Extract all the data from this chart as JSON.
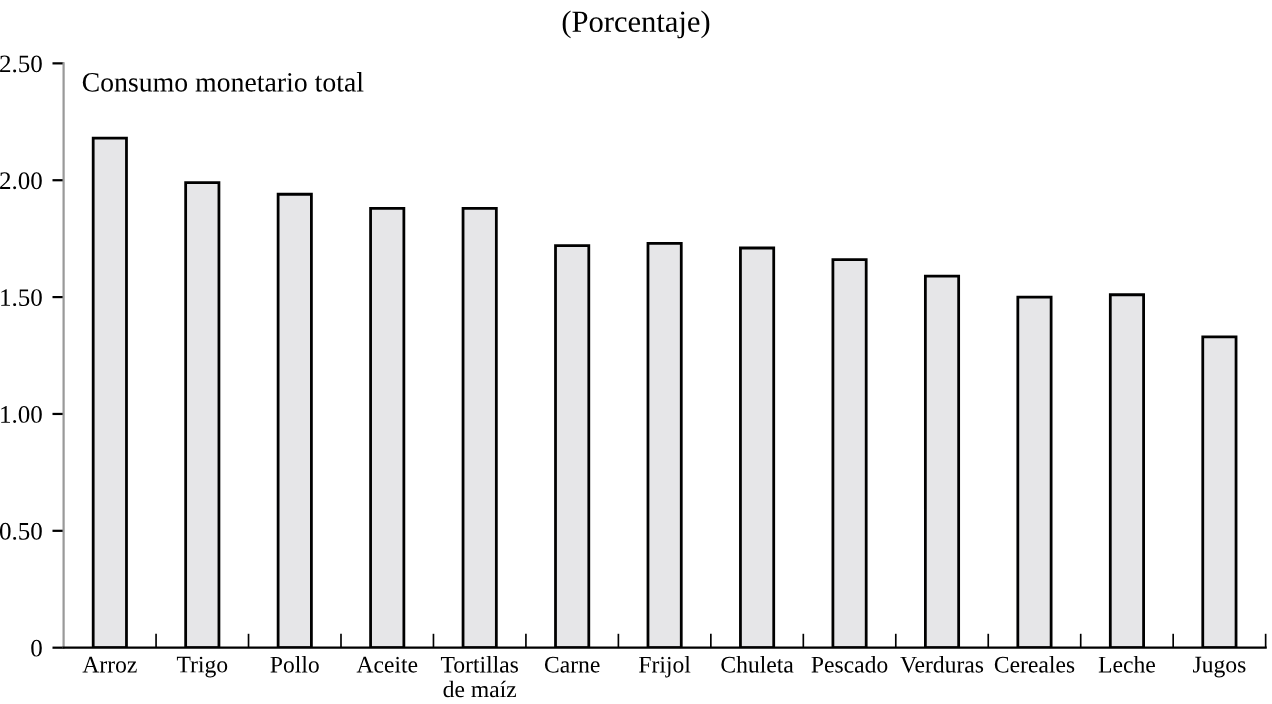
{
  "chart_data": {
    "type": "bar",
    "subtitle": "(Porcentaje)",
    "annotations": [
      "Consumo monetario total"
    ],
    "categories": [
      "Arroz",
      "Trigo",
      "Pollo",
      "Aceite",
      "Tortillas\nde maíz",
      "Carne",
      "Frijol",
      "Chuleta",
      "Pescado",
      "Verduras",
      "Cereales",
      "Leche",
      "Jugos"
    ],
    "values": [
      2.18,
      1.99,
      1.94,
      1.88,
      1.88,
      1.72,
      1.73,
      1.71,
      1.66,
      1.59,
      1.5,
      1.51,
      1.33
    ],
    "color": "#e6e6e8",
    "ylim": [
      0,
      2.5
    ],
    "yticks": [
      0,
      {
        "value": 0.5,
        "label": "0.50"
      },
      {
        "value": 1,
        "label": "1.00"
      },
      {
        "value": 1.5,
        "label": "1.50"
      },
      {
        "value": 2,
        "label": "2.00"
      },
      {
        "value": 2.5,
        "label": "2.50"
      }
    ],
    "grid": false,
    "legend": false
  }
}
